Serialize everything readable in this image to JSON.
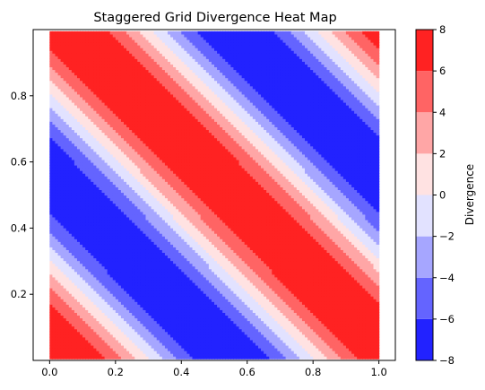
{
  "chart_data": {
    "type": "heatmap",
    "title": "Staggered Grid Divergence Heat Map",
    "xlabel": "",
    "ylabel": "",
    "xlim": [
      -0.05,
      1.05
    ],
    "ylim": [
      0.0,
      1.0
    ],
    "x_ticks": [
      0.0,
      0.2,
      0.4,
      0.6,
      0.8,
      1.0
    ],
    "x_tick_labels": [
      "0.0",
      "0.2",
      "0.4",
      "0.6",
      "0.8",
      "1.0"
    ],
    "y_ticks": [
      0.2,
      0.4,
      0.6,
      0.8
    ],
    "y_tick_labels": [
      "0.2",
      "0.4",
      "0.6",
      "0.8"
    ],
    "data_extent": {
      "x": [
        0.0,
        1.0
      ],
      "y": [
        0.005,
        0.995
      ]
    },
    "field": "divergence = 8 * sin(2*pi*(x + y) + 1.2)",
    "grid": false,
    "legend": "none",
    "colorbar": {
      "label": "Divergence",
      "placement": "right",
      "levels": [
        -8,
        -6,
        -4,
        -2,
        0,
        2,
        4,
        6,
        8
      ],
      "tick_labels": [
        "−8",
        "−6",
        "−4",
        "−2",
        "0",
        "2",
        "4",
        "6",
        "8"
      ],
      "colors": [
        "#2222ff",
        "#6464ff",
        "#a6a6ff",
        "#e2e2ff",
        "#ffe2e2",
        "#ffa6a6",
        "#ff6464",
        "#ff2222"
      ]
    },
    "colormap": "bwr"
  }
}
